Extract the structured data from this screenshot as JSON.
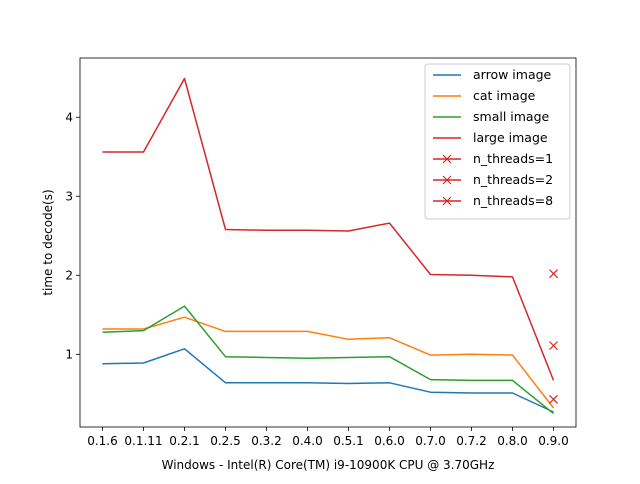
{
  "chart_data": {
    "type": "line",
    "title": "",
    "xlabel": "Windows - Intel(R) Core(TM) i9-10900K CPU @ 3.70GHz",
    "ylabel": "time to decode(s)",
    "categories": [
      "0.1.6",
      "0.1.11",
      "0.2.1",
      "0.2.5",
      "0.3.2",
      "0.4.0",
      "0.5.1",
      "0.6.0",
      "0.7.0",
      "0.7.2",
      "0.8.0",
      "0.9.0"
    ],
    "yticks": [
      1,
      2,
      3,
      4
    ],
    "ylim": [
      0.08,
      4.75
    ],
    "grid": false,
    "legend_position": "top-right",
    "series": [
      {
        "name": "arrow image",
        "color": "#1f77b4",
        "values": [
          0.88,
          0.89,
          1.07,
          0.64,
          0.64,
          0.64,
          0.63,
          0.64,
          0.52,
          0.51,
          0.51,
          0.27
        ]
      },
      {
        "name": "cat image",
        "color": "#ff7f0e",
        "values": [
          1.32,
          1.32,
          1.47,
          1.29,
          1.29,
          1.29,
          1.19,
          1.21,
          0.99,
          1.0,
          0.99,
          0.32
        ]
      },
      {
        "name": "small image",
        "color": "#2ca02c",
        "values": [
          1.28,
          1.3,
          1.61,
          0.97,
          0.96,
          0.95,
          0.96,
          0.97,
          0.68,
          0.67,
          0.67,
          0.25
        ]
      },
      {
        "name": "large image",
        "color": "#d62728",
        "values": [
          3.56,
          3.56,
          4.49,
          2.58,
          2.57,
          2.57,
          2.56,
          2.66,
          2.01,
          2.0,
          1.98,
          0.67
        ]
      }
    ],
    "markers": [
      {
        "name": "n_threads=1",
        "color": "#d62728",
        "category": "0.9.0",
        "value": 2.02
      },
      {
        "name": "n_threads=2",
        "color": "#d62728",
        "category": "0.9.0",
        "value": 1.11
      },
      {
        "name": "n_threads=8",
        "color": "#d62728",
        "category": "0.9.0",
        "value": 0.43
      }
    ]
  }
}
